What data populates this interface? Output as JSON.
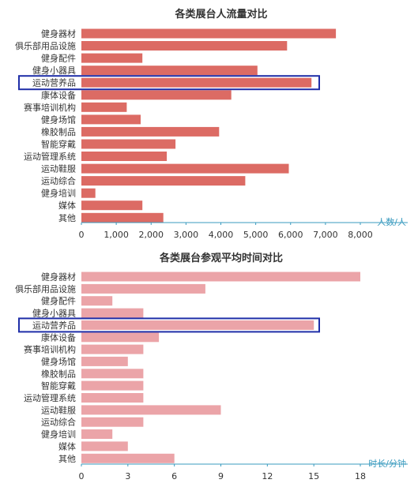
{
  "chart_data": [
    {
      "type": "bar",
      "orientation": "horizontal",
      "title": "各类展台人流量对比",
      "unit_label": "人数/人",
      "categories": [
        "健身器材",
        "俱乐部用品设施",
        "健身配件",
        "健身小器具",
        "运动营养品",
        "康体设备",
        "赛事培训机构",
        "健身场馆",
        "橡胶制品",
        "智能穿戴",
        "运动管理系统",
        "运动鞋服",
        "运动综合",
        "健身培训",
        "媒体",
        "其他"
      ],
      "values": [
        7300,
        5900,
        1750,
        5050,
        6600,
        4300,
        1300,
        1700,
        3950,
        2700,
        2450,
        5950,
        4700,
        400,
        1750,
        2350
      ],
      "xlim": [
        0,
        8000
      ],
      "xticks": [
        "0",
        "1,000",
        "2,000",
        "3,000",
        "4,000",
        "5,000",
        "6,000",
        "7,000",
        "8,000"
      ],
      "highlighted_category": "运动营养品",
      "bar_color": "#dc6b64",
      "highlight_color": "#1f2ea8",
      "axis_color": "#3a9bbf"
    },
    {
      "type": "bar",
      "orientation": "horizontal",
      "title": "各类展台参观平均时间对比",
      "unit_label": "时长/分钟",
      "categories": [
        "健身器材",
        "俱乐部用品设施",
        "健身配件",
        "健身小器具",
        "运动营养品",
        "康体设备",
        "赛事培训机构",
        "健身场馆",
        "橡胶制品",
        "智能穿戴",
        "运动管理系统",
        "运动鞋服",
        "运动综合",
        "健身培训",
        "媒体",
        "其他"
      ],
      "values": [
        18,
        8,
        2,
        4,
        15,
        5,
        4,
        3,
        4,
        4,
        4,
        9,
        4,
        2,
        3,
        6
      ],
      "xlim": [
        0,
        18
      ],
      "xticks": [
        "0",
        "3",
        "6",
        "9",
        "12",
        "15",
        "18"
      ],
      "highlighted_category": "运动营养品",
      "bar_color": "#eba4a8",
      "highlight_color": "#1f2ea8",
      "axis_color": "#3a9bbf"
    }
  ]
}
